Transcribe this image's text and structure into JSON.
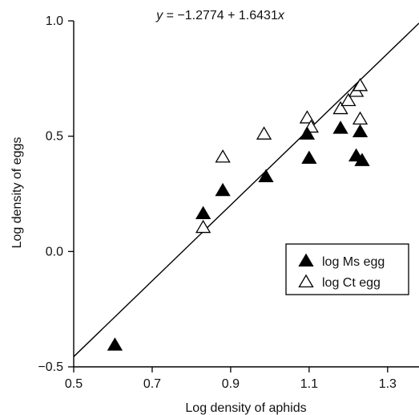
{
  "chart_data": {
    "type": "scatter",
    "xlabel": "Log density of aphids",
    "ylabel": "Log density of eggs",
    "xlim": [
      0.5,
      1.38
    ],
    "ylim": [
      -0.5,
      1.0
    ],
    "xticks": [
      0.5,
      0.7,
      0.9,
      1.1,
      1.3
    ],
    "xtick_labels": [
      "0.5",
      "0.7",
      "0.9",
      "1.1",
      "1.3"
    ],
    "yticks": [
      -0.5,
      0.0,
      0.5,
      1.0
    ],
    "ytick_labels": [
      "−0.5",
      "0.0",
      "0.5",
      "1.0"
    ],
    "equation": {
      "y": "y",
      "rest": " = −1.2774 + 1.6431",
      "x": "x"
    },
    "fit_line": {
      "intercept": -1.2774,
      "slope": 1.6431,
      "x_range": [
        0.5,
        1.38
      ]
    },
    "legend_position": "right",
    "series": [
      {
        "name": "log Ms egg",
        "marker": "filled-triangle",
        "color": "#000000",
        "points": [
          [
            0.605,
            -0.405
          ],
          [
            0.83,
            0.165
          ],
          [
            0.88,
            0.265
          ],
          [
            0.99,
            0.325
          ],
          [
            1.095,
            0.51
          ],
          [
            1.1,
            0.405
          ],
          [
            1.18,
            0.535
          ],
          [
            1.22,
            0.415
          ],
          [
            1.23,
            0.52
          ],
          [
            1.235,
            0.395
          ]
        ]
      },
      {
        "name": "log Ct egg",
        "marker": "open-triangle",
        "color": "#000000",
        "points": [
          [
            0.83,
            0.105
          ],
          [
            0.88,
            0.41
          ],
          [
            0.985,
            0.51
          ],
          [
            1.095,
            0.58
          ],
          [
            1.105,
            0.54
          ],
          [
            1.18,
            0.62
          ],
          [
            1.2,
            0.655
          ],
          [
            1.22,
            0.695
          ],
          [
            1.23,
            0.72
          ],
          [
            1.23,
            0.575
          ]
        ]
      }
    ]
  }
}
